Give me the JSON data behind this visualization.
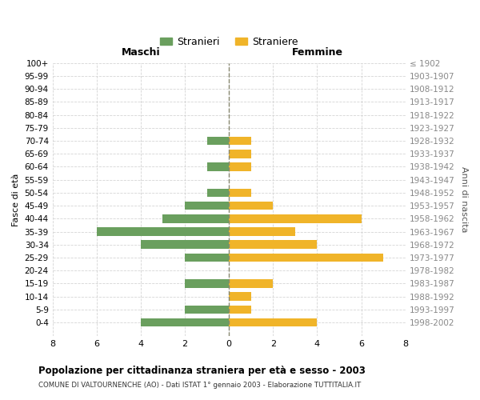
{
  "age_groups": [
    "100+",
    "95-99",
    "90-94",
    "85-89",
    "80-84",
    "75-79",
    "70-74",
    "65-69",
    "60-64",
    "55-59",
    "50-54",
    "45-49",
    "40-44",
    "35-39",
    "30-34",
    "25-29",
    "20-24",
    "15-19",
    "10-14",
    "5-9",
    "0-4"
  ],
  "birth_years": [
    "≤ 1902",
    "1903-1907",
    "1908-1912",
    "1913-1917",
    "1918-1922",
    "1923-1927",
    "1928-1932",
    "1933-1937",
    "1938-1942",
    "1943-1947",
    "1948-1952",
    "1953-1957",
    "1958-1962",
    "1963-1967",
    "1968-1972",
    "1973-1977",
    "1978-1982",
    "1983-1987",
    "1988-1992",
    "1993-1997",
    "1998-2002"
  ],
  "maschi": [
    0,
    0,
    0,
    0,
    0,
    0,
    1,
    0,
    1,
    0,
    1,
    2,
    3,
    6,
    4,
    2,
    0,
    2,
    0,
    2,
    4
  ],
  "femmine": [
    0,
    0,
    0,
    0,
    0,
    0,
    1,
    1,
    1,
    0,
    1,
    2,
    6,
    3,
    4,
    7,
    0,
    2,
    1,
    1,
    4
  ],
  "male_color": "#6a9f5e",
  "female_color": "#f0b429",
  "title": "Popolazione per cittadinanza straniera per età e sesso - 2003",
  "subtitle": "COMUNE DI VALTOURNENCHE (AO) - Dati ISTAT 1° gennaio 2003 - Elaborazione TUTTITALIA.IT",
  "ylabel_left": "Fasce di età",
  "ylabel_right": "Anni di nascita",
  "maschi_label": "Maschi",
  "femmine_label": "Femmine",
  "legend_stranieri": "Stranieri",
  "legend_straniere": "Straniere",
  "xlim": 8,
  "background_color": "#ffffff",
  "grid_color": "#d0d0d0"
}
